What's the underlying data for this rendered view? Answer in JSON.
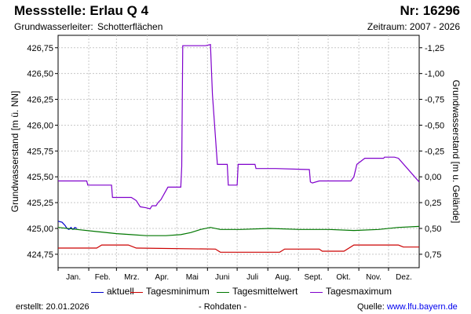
{
  "header": {
    "title": "Messstelle: Erlau Q 4",
    "number": "Nr: 16296",
    "aquifer_label": "Grundwasserleiter:",
    "aquifer_value": "Schotterflächen",
    "period": "Zeitraum: 2007 - 2026"
  },
  "footer": {
    "created": "erstellt:  20.01.2026",
    "raw": "- Rohdaten -",
    "source_label": "Quelle:",
    "source_link": "www.lfu.bayern.de"
  },
  "colors": {
    "aktuell": "#0000cc",
    "min": "#cc0000",
    "mean": "#007700",
    "max": "#7f00cc",
    "grid": "#c8c8c8"
  },
  "chart_data": {
    "type": "line",
    "ylabel_left": "Grundwasserstand [m ü. NN]",
    "ylabel_right": "Grundwasserstand [m u. Gelände]",
    "ylim": [
      424.62,
      426.87
    ],
    "left_ticks": [
      "426,75",
      "426,50",
      "426,25",
      "426,00",
      "425,75",
      "425,50",
      "425,25",
      "425,00",
      "424,75"
    ],
    "left_tick_values": [
      426.75,
      426.5,
      426.25,
      426.0,
      425.75,
      425.5,
      425.25,
      425.0,
      424.75
    ],
    "right_ticks": [
      "-1,25",
      "-1,00",
      "-0,75",
      "-0,50",
      "-0,25",
      "0,00",
      "0,25",
      "0,50",
      "0,75"
    ],
    "right_tick_values": [
      -1.25,
      -1.0,
      -0.75,
      -0.5,
      -0.25,
      0.0,
      0.25,
      0.5,
      0.75
    ],
    "categories": [
      "Jan.",
      "Feb.",
      "Mrz.",
      "Apr.",
      "Mai",
      "Juni",
      "Juli",
      "Aug.",
      "Sept.",
      "Okt.",
      "Nov.",
      "Dez."
    ],
    "series": [
      {
        "name": "aktuell",
        "color": "#0000cc",
        "x": [
          1,
          5,
          8,
          10,
          12,
          14,
          16,
          18,
          20
        ],
        "y": [
          425.07,
          425.06,
          425.03,
          425.0,
          424.99,
          425.01,
          424.99,
          425.01,
          425.0
        ]
      },
      {
        "name": "Tagesminimum",
        "color": "#cc0000",
        "x": [
          1,
          40,
          45,
          72,
          80,
          160,
          165,
          225,
          230,
          265,
          268,
          290,
          300,
          345,
          350,
          366
        ],
        "y": [
          424.81,
          424.81,
          424.84,
          424.84,
          424.81,
          424.8,
          424.77,
          424.77,
          424.8,
          424.8,
          424.78,
          424.78,
          424.84,
          424.84,
          424.82,
          424.82
        ]
      },
      {
        "name": "Tagesmittelwert",
        "color": "#007700",
        "x": [
          1,
          20,
          40,
          60,
          75,
          90,
          110,
          125,
          135,
          145,
          155,
          165,
          185,
          215,
          245,
          275,
          300,
          325,
          345,
          366
        ],
        "y": [
          425.01,
          424.99,
          424.97,
          424.95,
          424.94,
          424.93,
          424.93,
          424.94,
          424.96,
          424.99,
          425.01,
          424.99,
          424.99,
          425.0,
          424.99,
          424.99,
          424.98,
          424.99,
          425.01,
          425.02
        ]
      },
      {
        "name": "Tagesmaximum",
        "color": "#7f00cc",
        "x": [
          1,
          30,
          31,
          55,
          56,
          75,
          80,
          84,
          90,
          94,
          96,
          100,
          102,
          105,
          112,
          120,
          125,
          126,
          127,
          150,
          155,
          157,
          162,
          172,
          173,
          182,
          183,
          200,
          201,
          220,
          221,
          255,
          256,
          258,
          265,
          297,
          300,
          303,
          311,
          330,
          331,
          341,
          345,
          366
        ],
        "y": [
          425.46,
          425.46,
          425.42,
          425.42,
          425.3,
          425.3,
          425.27,
          425.21,
          425.2,
          425.19,
          425.22,
          425.22,
          425.25,
          425.28,
          425.4,
          425.4,
          425.4,
          425.6,
          426.77,
          426.77,
          426.78,
          426.3,
          425.62,
          425.62,
          425.42,
          425.42,
          425.62,
          425.62,
          425.58,
          425.58,
          425.58,
          425.57,
          425.45,
          425.44,
          425.46,
          425.46,
          425.5,
          425.62,
          425.68,
          425.68,
          425.69,
          425.69,
          425.68,
          425.45
        ]
      }
    ],
    "grid": true,
    "legend_placement": "bottom"
  },
  "legend": [
    {
      "key": "aktuell",
      "label": "aktuell",
      "color": "#0000cc"
    },
    {
      "key": "min",
      "label": "Tagesminimum",
      "color": "#cc0000"
    },
    {
      "key": "mean",
      "label": "Tagesmittelwert",
      "color": "#007700"
    },
    {
      "key": "max",
      "label": "Tagesmaximum",
      "color": "#7f00cc"
    }
  ]
}
